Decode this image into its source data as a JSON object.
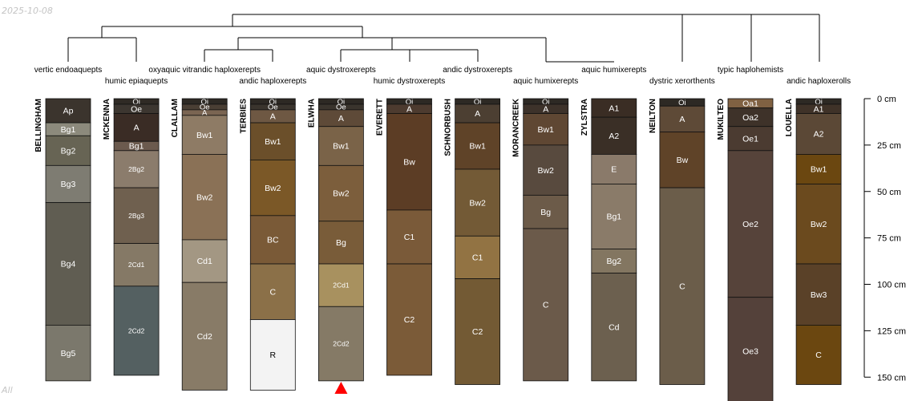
{
  "page": {
    "date": "2025-10-08",
    "footer": "All"
  },
  "chart_data": {
    "type": "soil-profile",
    "depth_unit": "cm",
    "depth_axis": {
      "ticks": [
        0,
        25,
        50,
        75,
        100,
        125,
        150
      ],
      "tick_labels": [
        "0 cm",
        "25 cm",
        "50 cm",
        "75 cm",
        "100 cm",
        "125 cm",
        "150 cm"
      ]
    },
    "profiles": [
      {
        "name": "BELLINGHAM",
        "taxon": "vertic endoaquepts",
        "horizons": [
          {
            "name": "Ap",
            "top": 0,
            "bottom": 13,
            "color": "#3b342d"
          },
          {
            "name": "Bg1",
            "top": 13,
            "bottom": 20,
            "color": "#8c8a7c"
          },
          {
            "name": "Bg2",
            "top": 20,
            "bottom": 36,
            "color": "#676454"
          },
          {
            "name": "Bg3",
            "top": 36,
            "bottom": 56,
            "color": "#7e7c72"
          },
          {
            "name": "Bg4",
            "top": 56,
            "bottom": 122,
            "color": "#605d52"
          },
          {
            "name": "Bg5",
            "top": 122,
            "bottom": 152,
            "color": "#7b786c"
          }
        ]
      },
      {
        "name": "MCKENNA",
        "taxon": "humic epiaquepts",
        "horizons": [
          {
            "name": "Oi",
            "top": 0,
            "bottom": 3,
            "color": "#2f2a25"
          },
          {
            "name": "Oe",
            "top": 3,
            "bottom": 8,
            "color": "#3c3630"
          },
          {
            "name": "A",
            "top": 8,
            "bottom": 23,
            "color": "#3a2c25"
          },
          {
            "name": "Bg1",
            "top": 23,
            "bottom": 28,
            "color": "#6b5a4e"
          },
          {
            "name": "2Bg2",
            "top": 28,
            "bottom": 48,
            "color": "#8b7c6c"
          },
          {
            "name": "2Bg3",
            "top": 48,
            "bottom": 78,
            "color": "#6f604f"
          },
          {
            "name": "2Cd1",
            "top": 78,
            "bottom": 101,
            "color": "#857966"
          },
          {
            "name": "2Cd2",
            "top": 101,
            "bottom": 149,
            "color": "#546061"
          }
        ]
      },
      {
        "name": "CLALLAM",
        "taxon": "oxyaquic vitrandic haploxerepts",
        "horizons": [
          {
            "name": "Oi",
            "top": 0,
            "bottom": 3,
            "color": "#2d2924"
          },
          {
            "name": "Oe",
            "top": 3,
            "bottom": 6,
            "color": "#4a3f34"
          },
          {
            "name": "A",
            "top": 6,
            "bottom": 9,
            "color": "#7a6552"
          },
          {
            "name": "Bw1",
            "top": 9,
            "bottom": 30,
            "color": "#8e7b65"
          },
          {
            "name": "Bw2",
            "top": 30,
            "bottom": 76,
            "color": "#8a7156"
          },
          {
            "name": "Cd1",
            "top": 76,
            "bottom": 99,
            "color": "#a39783"
          },
          {
            "name": "Cd2",
            "top": 99,
            "bottom": 157,
            "color": "#887b67"
          }
        ]
      },
      {
        "name": "TERBIES",
        "taxon": "andic haploxerepts",
        "horizons": [
          {
            "name": "Oi",
            "top": 0,
            "bottom": 3,
            "color": "#2d2924"
          },
          {
            "name": "Oe",
            "top": 3,
            "bottom": 6,
            "color": "#3a342d"
          },
          {
            "name": "A",
            "top": 6,
            "bottom": 13,
            "color": "#6e5843"
          },
          {
            "name": "Bw1",
            "top": 13,
            "bottom": 33,
            "color": "#6b4f2a"
          },
          {
            "name": "Bw2",
            "top": 33,
            "bottom": 63,
            "color": "#7b5827"
          },
          {
            "name": "BC",
            "top": 63,
            "bottom": 89,
            "color": "#7a5a37"
          },
          {
            "name": "C",
            "top": 89,
            "bottom": 119,
            "color": "#8b7048"
          },
          {
            "name": "R",
            "top": 119,
            "bottom": 157,
            "color": "#f3f3f3"
          }
        ]
      },
      {
        "name": "ELWHA",
        "taxon": "aquic dystroxerepts",
        "horizons": [
          {
            "name": "Oi",
            "top": 0,
            "bottom": 3,
            "color": "#2d2924"
          },
          {
            "name": "Oe",
            "top": 3,
            "bottom": 6,
            "color": "#3a342d"
          },
          {
            "name": "A",
            "top": 6,
            "bottom": 15,
            "color": "#5e4a38"
          },
          {
            "name": "Bw1",
            "top": 15,
            "bottom": 36,
            "color": "#7a6348"
          },
          {
            "name": "Bw2",
            "top": 36,
            "bottom": 66,
            "color": "#7c5e3c"
          },
          {
            "name": "Bg",
            "top": 66,
            "bottom": 89,
            "color": "#795c39"
          },
          {
            "name": "2Cd1",
            "top": 89,
            "bottom": 112,
            "color": "#a8915f"
          },
          {
            "name": "2Cd2",
            "top": 112,
            "bottom": 152,
            "color": "#857a66"
          }
        ]
      },
      {
        "name": "EVERETT",
        "taxon": "humic dystroxerepts",
        "horizons": [
          {
            "name": "Oi",
            "top": 0,
            "bottom": 3,
            "color": "#2d2924"
          },
          {
            "name": "A",
            "top": 3,
            "bottom": 8,
            "color": "#4d3b2f"
          },
          {
            "name": "Bw",
            "top": 8,
            "bottom": 60,
            "color": "#5c3d25"
          },
          {
            "name": "C1",
            "top": 60,
            "bottom": 89,
            "color": "#7a5a39"
          },
          {
            "name": "C2",
            "top": 89,
            "bottom": 149,
            "color": "#7b5b38"
          }
        ]
      },
      {
        "name": "SCHNORBUSH",
        "taxon": "andic dystroxerepts",
        "horizons": [
          {
            "name": "Oi",
            "top": 0,
            "bottom": 3,
            "color": "#2d2924"
          },
          {
            "name": "A",
            "top": 3,
            "bottom": 13,
            "color": "#4c3f32"
          },
          {
            "name": "Bw1",
            "top": 13,
            "bottom": 38,
            "color": "#5f4328"
          },
          {
            "name": "Bw2",
            "top": 38,
            "bottom": 74,
            "color": "#735a36"
          },
          {
            "name": "C1",
            "top": 74,
            "bottom": 97,
            "color": "#927343"
          },
          {
            "name": "C2",
            "top": 97,
            "bottom": 154,
            "color": "#735a34"
          }
        ]
      },
      {
        "name": "MORANCREEK",
        "taxon": "aquic humixerepts",
        "horizons": [
          {
            "name": "Oi",
            "top": 0,
            "bottom": 3,
            "color": "#2d2924"
          },
          {
            "name": "A",
            "top": 3,
            "bottom": 8,
            "color": "#3d322a"
          },
          {
            "name": "Bw1",
            "top": 8,
            "bottom": 25,
            "color": "#5f4733"
          },
          {
            "name": "Bw2",
            "top": 25,
            "bottom": 52,
            "color": "#584a3e"
          },
          {
            "name": "Bg",
            "top": 52,
            "bottom": 70,
            "color": "#6c5b49"
          },
          {
            "name": "C",
            "top": 70,
            "bottom": 152,
            "color": "#6b5a4a"
          }
        ]
      },
      {
        "name": "ZYLSTRA",
        "taxon": "aquic humixerepts",
        "horizons": [
          {
            "name": "A1",
            "top": 0,
            "bottom": 10,
            "color": "#3a2d24"
          },
          {
            "name": "A2",
            "top": 10,
            "bottom": 30,
            "color": "#3a2f26"
          },
          {
            "name": "E",
            "top": 30,
            "bottom": 46,
            "color": "#8a7a6a"
          },
          {
            "name": "Bg1",
            "top": 46,
            "bottom": 81,
            "color": "#8a7b69"
          },
          {
            "name": "Bg2",
            "top": 81,
            "bottom": 94,
            "color": "#837661"
          },
          {
            "name": "Cd",
            "top": 94,
            "bottom": 152,
            "color": "#6c604f"
          }
        ]
      },
      {
        "name": "NEILTON",
        "taxon": "dystric xerorthents",
        "horizons": [
          {
            "name": "Oi",
            "top": 0,
            "bottom": 4,
            "color": "#2d2924"
          },
          {
            "name": "A",
            "top": 4,
            "bottom": 18,
            "color": "#5e4a37"
          },
          {
            "name": "Bw",
            "top": 18,
            "bottom": 48,
            "color": "#5f4328"
          },
          {
            "name": "C",
            "top": 48,
            "bottom": 154,
            "color": "#6b5d4a"
          }
        ]
      },
      {
        "name": "MUKILTEO",
        "taxon": "typic haplohemists",
        "horizons": [
          {
            "name": "Oa1",
            "top": 0,
            "bottom": 5,
            "color": "#806142"
          },
          {
            "name": "Oa2",
            "top": 5,
            "bottom": 15,
            "color": "#3e3229"
          },
          {
            "name": "Oe1",
            "top": 15,
            "bottom": 28,
            "color": "#4b3b31"
          },
          {
            "name": "Oe2",
            "top": 28,
            "bottom": 107,
            "color": "#56433a"
          },
          {
            "name": "Oe3",
            "top": 107,
            "bottom": 165,
            "color": "#54413a"
          }
        ]
      },
      {
        "name": "LOUELLA",
        "taxon": "andic haploxerolls",
        "horizons": [
          {
            "name": "Oi",
            "top": 0,
            "bottom": 3,
            "color": "#2d2924"
          },
          {
            "name": "A1",
            "top": 3,
            "bottom": 8,
            "color": "#3f3228"
          },
          {
            "name": "A2",
            "top": 8,
            "bottom": 30,
            "color": "#5b4836"
          },
          {
            "name": "Bw1",
            "top": 30,
            "bottom": 46,
            "color": "#6b4710"
          },
          {
            "name": "Bw2",
            "top": 46,
            "bottom": 89,
            "color": "#6b4a1e"
          },
          {
            "name": "Bw3",
            "top": 89,
            "bottom": 122,
            "color": "#5a4128"
          },
          {
            "name": "C",
            "top": 122,
            "bottom": 154,
            "color": "#6b4710"
          }
        ]
      }
    ],
    "truncation_marker": {
      "profile": "ELWHA",
      "color": "#ff0000"
    }
  }
}
